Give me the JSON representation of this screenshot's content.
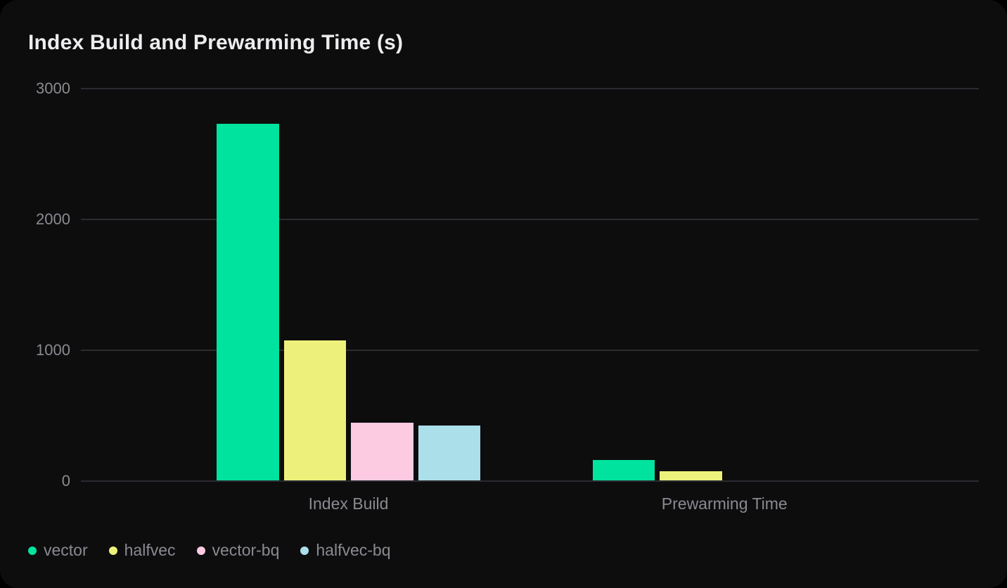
{
  "card": {
    "title": "Index Build and Prewarming Time (s)"
  },
  "colors": {
    "page_background": "#000000",
    "card_background": "#0d0d0e",
    "title_text": "#ededef",
    "muted_text": "#8a8a91",
    "gridline": "#2b2b30",
    "series_vector": "#00e39e",
    "series_halfvec": "#edf17b",
    "series_vector_bq": "#fccbe2",
    "series_halfvec_bq": "#abdfea"
  },
  "chart_data": {
    "type": "bar",
    "title": "Index Build and Prewarming Time (s)",
    "categories": [
      "Index Build",
      "Prewarming Time"
    ],
    "series": [
      {
        "name": "vector",
        "color": "#00e39e",
        "values": [
          2730,
          160
        ]
      },
      {
        "name": "halfvec",
        "color": "#edf17b",
        "values": [
          1075,
          70
        ]
      },
      {
        "name": "vector-bq",
        "color": "#fccbe2",
        "values": [
          445,
          0
        ]
      },
      {
        "name": "halfvec-bq",
        "color": "#abdfea",
        "values": [
          420,
          0
        ]
      }
    ],
    "xlabel": "",
    "ylabel": "",
    "unit": "s",
    "ylim": [
      0,
      3000
    ],
    "yticks": [
      0,
      1000,
      2000,
      3000
    ],
    "grid": true,
    "legend_position": "bottom-left"
  }
}
